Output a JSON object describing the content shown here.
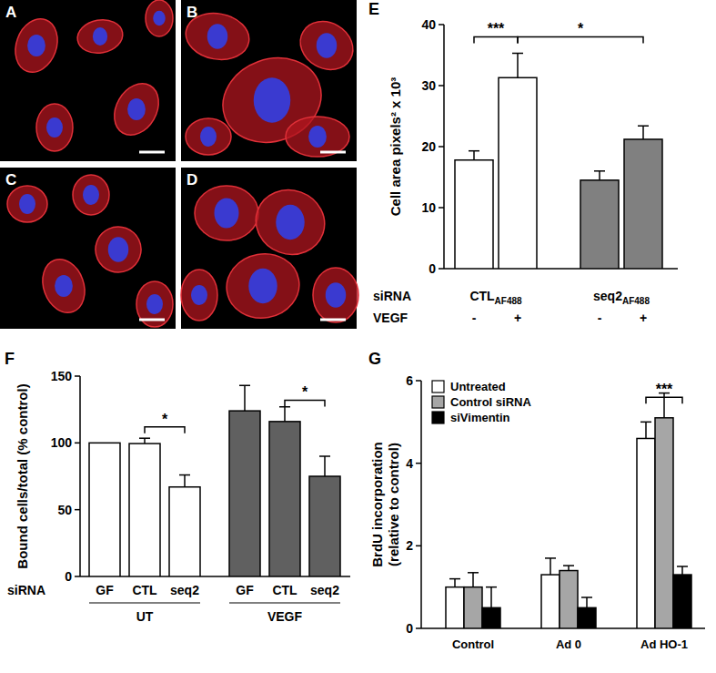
{
  "panels": [
    {
      "label": "A"
    },
    {
      "label": "B"
    },
    {
      "label": "C"
    },
    {
      "label": "D"
    }
  ],
  "chart_data": [
    {
      "type": "bar",
      "panel": "E",
      "y_label": "Cell area pixels² x 10³",
      "categories": [
        "-",
        "+",
        "-",
        "+"
      ],
      "category_row_label": "VEGF",
      "groups": [
        {
          "label": "CTL",
          "subscript": "AF488"
        },
        {
          "label": "seq2",
          "subscript": "AF488"
        }
      ],
      "group_row_label": "siRNA",
      "values": [
        17.8,
        31.3,
        14.5,
        21.2
      ],
      "errors": [
        1.5,
        4.0,
        1.5,
        2.2
      ],
      "colors": [
        "#ffffff",
        "#ffffff",
        "#808080",
        "#808080"
      ],
      "ylim": [
        0,
        40
      ],
      "yticks": [
        0,
        10,
        20,
        30,
        40
      ],
      "annotations": [
        {
          "text": "***",
          "from": 0,
          "to": 1,
          "y": 38
        },
        {
          "text": "*",
          "from": 1,
          "to": 3,
          "y": 38
        }
      ]
    },
    {
      "type": "bar",
      "panel": "F",
      "y_label": "Bound cells/total (% control)",
      "categories": [
        "GF",
        "CTL",
        "seq2",
        "GF",
        "CTL",
        "seq2"
      ],
      "category_row_label": "siRNA",
      "groups": [
        {
          "label": "UT"
        },
        {
          "label": "VEGF"
        }
      ],
      "values": [
        100,
        99.5,
        67,
        124,
        116,
        75
      ],
      "errors": [
        0,
        4,
        9,
        19,
        11,
        15
      ],
      "colors": [
        "#ffffff",
        "#ffffff",
        "#ffffff",
        "#606060",
        "#606060",
        "#606060"
      ],
      "ylim": [
        0,
        150
      ],
      "yticks": [
        0,
        50,
        100,
        150
      ],
      "annotations": [
        {
          "text": "*",
          "from": 1,
          "to": 2,
          "y": 112
        },
        {
          "text": "*",
          "from": 4,
          "to": 5,
          "y": 132
        }
      ]
    },
    {
      "type": "bar",
      "panel": "G",
      "y_label": [
        "BrdU incorporation",
        "(relative to control)"
      ],
      "categories": [
        "Control",
        "Ad 0",
        "Ad HO-1"
      ],
      "series": [
        {
          "name": "Untreated",
          "color": "#ffffff",
          "values": [
            1.0,
            1.3,
            4.6
          ],
          "errors": [
            0.2,
            0.4,
            0.4
          ]
        },
        {
          "name": "Control siRNA",
          "color": "#a6a6a6",
          "values": [
            1.0,
            1.4,
            5.1
          ],
          "errors": [
            0.35,
            0.12,
            0.6
          ]
        },
        {
          "name": "siVimentin",
          "color": "#000000",
          "values": [
            0.5,
            0.5,
            1.3
          ],
          "errors": [
            0.5,
            0.25,
            0.2
          ]
        }
      ],
      "ylim": [
        0,
        6
      ],
      "yticks": [
        0,
        2,
        4,
        6
      ],
      "legend": "upper left",
      "annotations": [
        {
          "text": "***",
          "category": 2,
          "from": 0,
          "to": 2,
          "y": 5.6
        }
      ]
    }
  ]
}
